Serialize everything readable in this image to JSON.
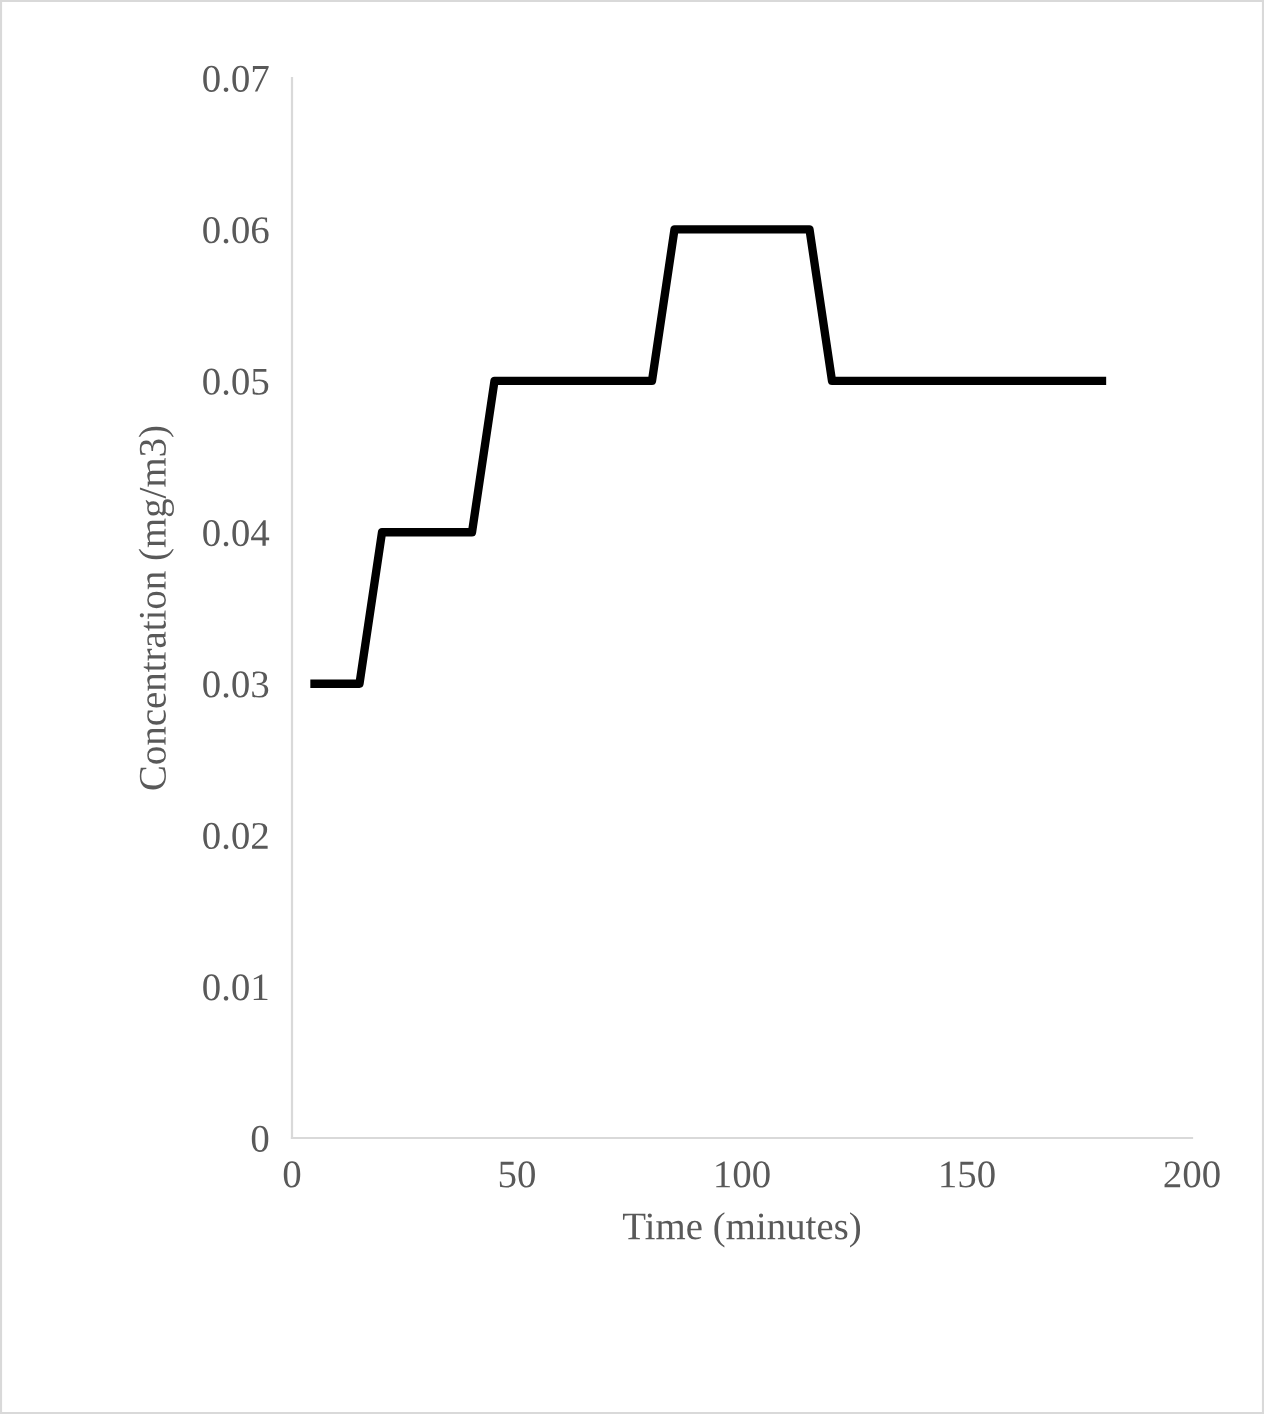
{
  "chart_data": {
    "type": "line",
    "xlabel": "Time (minutes)",
    "ylabel": "Concentration (mg/m3)",
    "series": [
      {
        "color": "#000000",
        "x": [
          5,
          15,
          20,
          40,
          45,
          80,
          85,
          115,
          120,
          180
        ],
        "values": [
          0.03,
          0.03,
          0.04,
          0.04,
          0.05,
          0.05,
          0.06,
          0.06,
          0.05,
          0.05
        ]
      }
    ],
    "xlim": [
      0,
      200
    ],
    "xticks": [
      0,
      50,
      100,
      150,
      200
    ],
    "ylim": [
      0,
      0.07
    ],
    "yticks": [
      0,
      0.01,
      0.02,
      0.03,
      0.04,
      0.05,
      0.06,
      0.07
    ],
    "grid": false,
    "legend": false,
    "marker": "none",
    "line_style": "solid"
  }
}
